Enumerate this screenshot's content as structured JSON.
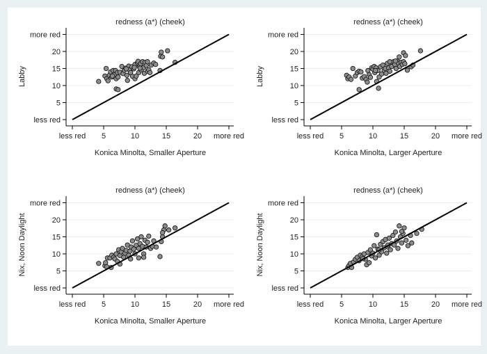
{
  "chart_data": [
    {
      "type": "scatter",
      "title": "redness (a*) (cheek)",
      "xlabel": "Konica Minolta, Smaller Aperture",
      "ylabel": "Labby",
      "xlim": [
        0,
        25
      ],
      "ylim": [
        0,
        25
      ],
      "xticks": [
        {
          "v": 0,
          "label": "less red"
        },
        {
          "v": 5,
          "label": "5"
        },
        {
          "v": 10,
          "label": "10"
        },
        {
          "v": 15,
          "label": "15"
        },
        {
          "v": 20,
          "label": "20"
        },
        {
          "v": 25,
          "label": "more red"
        }
      ],
      "yticks": [
        {
          "v": 0,
          "label": "less red"
        },
        {
          "v": 5,
          "label": "5"
        },
        {
          "v": 10,
          "label": "10"
        },
        {
          "v": 15,
          "label": "15"
        },
        {
          "v": 20,
          "label": "20"
        },
        {
          "v": 25,
          "label": "more red"
        }
      ],
      "grid": true,
      "reference_line": [
        [
          0,
          0
        ],
        [
          25,
          25
        ]
      ],
      "points": [
        [
          4.2,
          11.2
        ],
        [
          5.4,
          15
        ],
        [
          5.2,
          12.8
        ],
        [
          5.5,
          12
        ],
        [
          5.7,
          11.4
        ],
        [
          5.9,
          13
        ],
        [
          6.1,
          14
        ],
        [
          6.3,
          12.5
        ],
        [
          6.5,
          14.4
        ],
        [
          6.7,
          13.2
        ],
        [
          6.9,
          14.4
        ],
        [
          7,
          12
        ],
        [
          7.2,
          13.8
        ],
        [
          7.3,
          12.5
        ],
        [
          7.6,
          13.9
        ],
        [
          7,
          9
        ],
        [
          7.3,
          8.8
        ],
        [
          7.9,
          15.6
        ],
        [
          8.1,
          13.5
        ],
        [
          8.3,
          14.5
        ],
        [
          8.5,
          15.1
        ],
        [
          8.7,
          13
        ],
        [
          8.8,
          11.5
        ],
        [
          9,
          15.7
        ],
        [
          9.1,
          14.6
        ],
        [
          9.3,
          13.8
        ],
        [
          9.5,
          15.5
        ],
        [
          9.6,
          12.7
        ],
        [
          9.8,
          14.9
        ],
        [
          10,
          16.2
        ],
        [
          10,
          12
        ],
        [
          10.2,
          12.8
        ],
        [
          10.4,
          16.7
        ],
        [
          10.5,
          17.1
        ],
        [
          10.6,
          13.8
        ],
        [
          10.7,
          15.6
        ],
        [
          10.9,
          16.4
        ],
        [
          11,
          14.6
        ],
        [
          11.2,
          17
        ],
        [
          11.4,
          15.3
        ],
        [
          11.6,
          16.8
        ],
        [
          11.5,
          13.6
        ],
        [
          11.8,
          15.9
        ],
        [
          12,
          17
        ],
        [
          12,
          14.2
        ],
        [
          12.2,
          14.6
        ],
        [
          12.4,
          13.8
        ],
        [
          12.6,
          16
        ],
        [
          13,
          16.6
        ],
        [
          13.3,
          16.2
        ],
        [
          14,
          14.4
        ],
        [
          14.1,
          18.6
        ],
        [
          14.2,
          19.8
        ],
        [
          14.4,
          18.4
        ],
        [
          15.2,
          20.2
        ],
        [
          16.4,
          16.8
        ],
        [
          9.9,
          15.3
        ],
        [
          8.6,
          14.9
        ],
        [
          6.4,
          12.8
        ],
        [
          10.8,
          15.1
        ]
      ]
    },
    {
      "type": "scatter",
      "title": "redness (a*) (cheek)",
      "xlabel": "Konica Minolta, Larger Aperture",
      "ylabel": "Labby",
      "xlim": [
        0,
        25
      ],
      "ylim": [
        0,
        25
      ],
      "xticks": [
        {
          "v": 0,
          "label": "less red"
        },
        {
          "v": 5,
          "label": "5"
        },
        {
          "v": 10,
          "label": "10"
        },
        {
          "v": 15,
          "label": "15"
        },
        {
          "v": 20,
          "label": "20"
        },
        {
          "v": 25,
          "label": "more red"
        }
      ],
      "yticks": [
        {
          "v": 0,
          "label": "less red"
        },
        {
          "v": 5,
          "label": "5"
        },
        {
          "v": 10,
          "label": "10"
        },
        {
          "v": 15,
          "label": "15"
        },
        {
          "v": 20,
          "label": "20"
        },
        {
          "v": 25,
          "label": "more red"
        }
      ],
      "grid": true,
      "reference_line": [
        [
          0,
          0
        ],
        [
          25,
          25
        ]
      ],
      "points": [
        [
          5.8,
          13
        ],
        [
          6,
          12
        ],
        [
          6.2,
          12.5
        ],
        [
          6.5,
          11.8
        ],
        [
          6.8,
          15
        ],
        [
          7.2,
          12.8
        ],
        [
          7.5,
          13.8
        ],
        [
          7.8,
          14.2
        ],
        [
          8.1,
          14
        ],
        [
          7.8,
          8.8
        ],
        [
          8.3,
          12.2
        ],
        [
          8.6,
          12.6
        ],
        [
          8.9,
          11.8
        ],
        [
          9.2,
          14.4
        ],
        [
          9.4,
          13.2
        ],
        [
          9.6,
          12.4
        ],
        [
          9.8,
          15.2
        ],
        [
          10,
          14.8
        ],
        [
          10.2,
          15.6
        ],
        [
          10.3,
          13.8
        ],
        [
          10.5,
          15.2
        ],
        [
          10.6,
          11.2
        ],
        [
          10.8,
          14.4
        ],
        [
          10.9,
          9.2
        ],
        [
          11,
          12.5
        ],
        [
          11.2,
          15.5
        ],
        [
          11.4,
          13.4
        ],
        [
          11.6,
          16
        ],
        [
          11.8,
          14.4
        ],
        [
          12,
          15
        ],
        [
          12.1,
          13.6
        ],
        [
          12.3,
          16.5
        ],
        [
          12.5,
          15.2
        ],
        [
          12.7,
          14.2
        ],
        [
          12.9,
          16.8
        ],
        [
          13,
          15.6
        ],
        [
          13.3,
          17
        ],
        [
          13.5,
          16.2
        ],
        [
          13.7,
          15
        ],
        [
          13.9,
          17.2
        ],
        [
          14.1,
          16.5
        ],
        [
          14.3,
          15.6
        ],
        [
          14.5,
          16.8
        ],
        [
          14.7,
          16.2
        ],
        [
          14.9,
          17
        ],
        [
          15.1,
          16.4
        ],
        [
          14.2,
          18.4
        ],
        [
          14.9,
          19.6
        ],
        [
          15.2,
          18.8
        ],
        [
          15.5,
          14.5
        ],
        [
          16.1,
          15.5
        ],
        [
          16.4,
          16
        ],
        [
          17.6,
          20.2
        ],
        [
          10.4,
          14.4
        ],
        [
          9.1,
          11
        ],
        [
          12.7,
          17
        ],
        [
          13.6,
          17.2
        ]
      ]
    },
    {
      "type": "scatter",
      "title": "redness (a*) (cheek)",
      "xlabel": "Konica Minolta, Smaller Aperture",
      "ylabel": "Nix, Noon Daylight",
      "xlim": [
        0,
        25
      ],
      "ylim": [
        0,
        25
      ],
      "xticks": [
        {
          "v": 0,
          "label": "less red"
        },
        {
          "v": 5,
          "label": "5"
        },
        {
          "v": 10,
          "label": "10"
        },
        {
          "v": 15,
          "label": "15"
        },
        {
          "v": 20,
          "label": "20"
        },
        {
          "v": 25,
          "label": "more red"
        }
      ],
      "yticks": [
        {
          "v": 0,
          "label": "less red"
        },
        {
          "v": 5,
          "label": "5"
        },
        {
          "v": 10,
          "label": "10"
        },
        {
          "v": 15,
          "label": "15"
        },
        {
          "v": 20,
          "label": "20"
        },
        {
          "v": 25,
          "label": "more red"
        }
      ],
      "grid": true,
      "reference_line": [
        [
          0,
          0
        ],
        [
          25,
          25
        ]
      ],
      "points": [
        [
          4.2,
          7.2
        ],
        [
          5.2,
          6.5
        ],
        [
          5.3,
          7.4
        ],
        [
          5.5,
          6.2
        ],
        [
          5.6,
          8.8
        ],
        [
          6,
          8.8
        ],
        [
          6.2,
          6
        ],
        [
          6.3,
          9.6
        ],
        [
          6.6,
          9
        ],
        [
          6.8,
          8.5
        ],
        [
          7,
          10
        ],
        [
          7.2,
          7.8
        ],
        [
          7.4,
          11.2
        ],
        [
          7.6,
          9.5
        ],
        [
          7.8,
          10.6
        ],
        [
          8,
          11.6
        ],
        [
          8.2,
          9
        ],
        [
          8.4,
          10.2
        ],
        [
          8.6,
          11
        ],
        [
          8.8,
          12.6
        ],
        [
          9,
          9.6
        ],
        [
          9.2,
          10.8
        ],
        [
          9.4,
          12
        ],
        [
          9.6,
          13.8
        ],
        [
          9.8,
          11.4
        ],
        [
          10,
          10
        ],
        [
          10.2,
          12.5
        ],
        [
          10.4,
          14.4
        ],
        [
          10.6,
          11.6
        ],
        [
          10.8,
          13
        ],
        [
          11,
          15
        ],
        [
          11.2,
          12.2
        ],
        [
          11.4,
          10
        ],
        [
          11.6,
          14
        ],
        [
          11.8,
          12
        ],
        [
          12,
          13.4
        ],
        [
          12.2,
          15.2
        ],
        [
          12.5,
          11.6
        ],
        [
          12.8,
          12.2
        ],
        [
          13,
          13.8
        ],
        [
          13.4,
          12
        ],
        [
          14,
          9.2
        ],
        [
          14.2,
          13.6
        ],
        [
          14.4,
          15
        ],
        [
          14.6,
          17
        ],
        [
          14.8,
          18.2
        ],
        [
          15.4,
          17
        ],
        [
          16.4,
          17.6
        ],
        [
          14.4,
          16.2
        ],
        [
          11.4,
          9
        ],
        [
          9.3,
          8.5
        ],
        [
          7.6,
          7
        ],
        [
          10.6,
          8.8
        ]
      ]
    },
    {
      "type": "scatter",
      "title": "redness (a*) (cheek)",
      "xlabel": "Konica Minolta, Larger Aperture",
      "ylabel": "Nix, Noon Daylight",
      "xlim": [
        0,
        25
      ],
      "ylim": [
        0,
        25
      ],
      "xticks": [
        {
          "v": 0,
          "label": "less red"
        },
        {
          "v": 5,
          "label": "5"
        },
        {
          "v": 10,
          "label": "10"
        },
        {
          "v": 15,
          "label": "15"
        },
        {
          "v": 20,
          "label": "20"
        },
        {
          "v": 25,
          "label": "more red"
        }
      ],
      "yticks": [
        {
          "v": 0,
          "label": "less red"
        },
        {
          "v": 5,
          "label": "5"
        },
        {
          "v": 10,
          "label": "10"
        },
        {
          "v": 15,
          "label": "15"
        },
        {
          "v": 20,
          "label": "20"
        },
        {
          "v": 25,
          "label": "more red"
        }
      ],
      "grid": true,
      "reference_line": [
        [
          0,
          0
        ],
        [
          25,
          25
        ]
      ],
      "points": [
        [
          6,
          6
        ],
        [
          6.2,
          6.6
        ],
        [
          6.4,
          7.2
        ],
        [
          6.6,
          6
        ],
        [
          6.9,
          7.6
        ],
        [
          7.2,
          8.4
        ],
        [
          7.5,
          9
        ],
        [
          7.8,
          8
        ],
        [
          8,
          9.6
        ],
        [
          8.3,
          9.2
        ],
        [
          8.6,
          10
        ],
        [
          8.8,
          8.4
        ],
        [
          9,
          6.8
        ],
        [
          9.2,
          10.4
        ],
        [
          9.4,
          7.4
        ],
        [
          9.6,
          11.2
        ],
        [
          9.8,
          9.4
        ],
        [
          10,
          10.2
        ],
        [
          10.2,
          12.4
        ],
        [
          10.4,
          8.8
        ],
        [
          10.6,
          15.6
        ],
        [
          10.8,
          11.4
        ],
        [
          11,
          9.6
        ],
        [
          11.2,
          12.8
        ],
        [
          11.4,
          10.6
        ],
        [
          11.6,
          13.6
        ],
        [
          11.8,
          11.8
        ],
        [
          12,
          14.2
        ],
        [
          12.2,
          10.2
        ],
        [
          12.4,
          12
        ],
        [
          12.6,
          14.6
        ],
        [
          12.8,
          11.2
        ],
        [
          13,
          13
        ],
        [
          13.2,
          15.4
        ],
        [
          13.4,
          12.6
        ],
        [
          13.6,
          16.4
        ],
        [
          13.8,
          13.8
        ],
        [
          14,
          11.6
        ],
        [
          14.2,
          18.2
        ],
        [
          14.4,
          15
        ],
        [
          14.6,
          13.2
        ],
        [
          14.8,
          16
        ],
        [
          15,
          17.6
        ],
        [
          15.3,
          14
        ],
        [
          15.6,
          12.4
        ],
        [
          16,
          15.4
        ],
        [
          17,
          16
        ],
        [
          17.8,
          17.2
        ],
        [
          14.6,
          16.6
        ],
        [
          12.4,
          12.6
        ],
        [
          11,
          11.2
        ],
        [
          8.4,
          8.6
        ],
        [
          16.2,
          13.2
        ]
      ]
    }
  ],
  "colors": {
    "background": "#eaf1f3",
    "panel": "#ffffff",
    "marker_fill": "#8c8c8c",
    "marker_edge": "#1a1a1a",
    "line": "#000000",
    "grid": "#e8eef1"
  }
}
